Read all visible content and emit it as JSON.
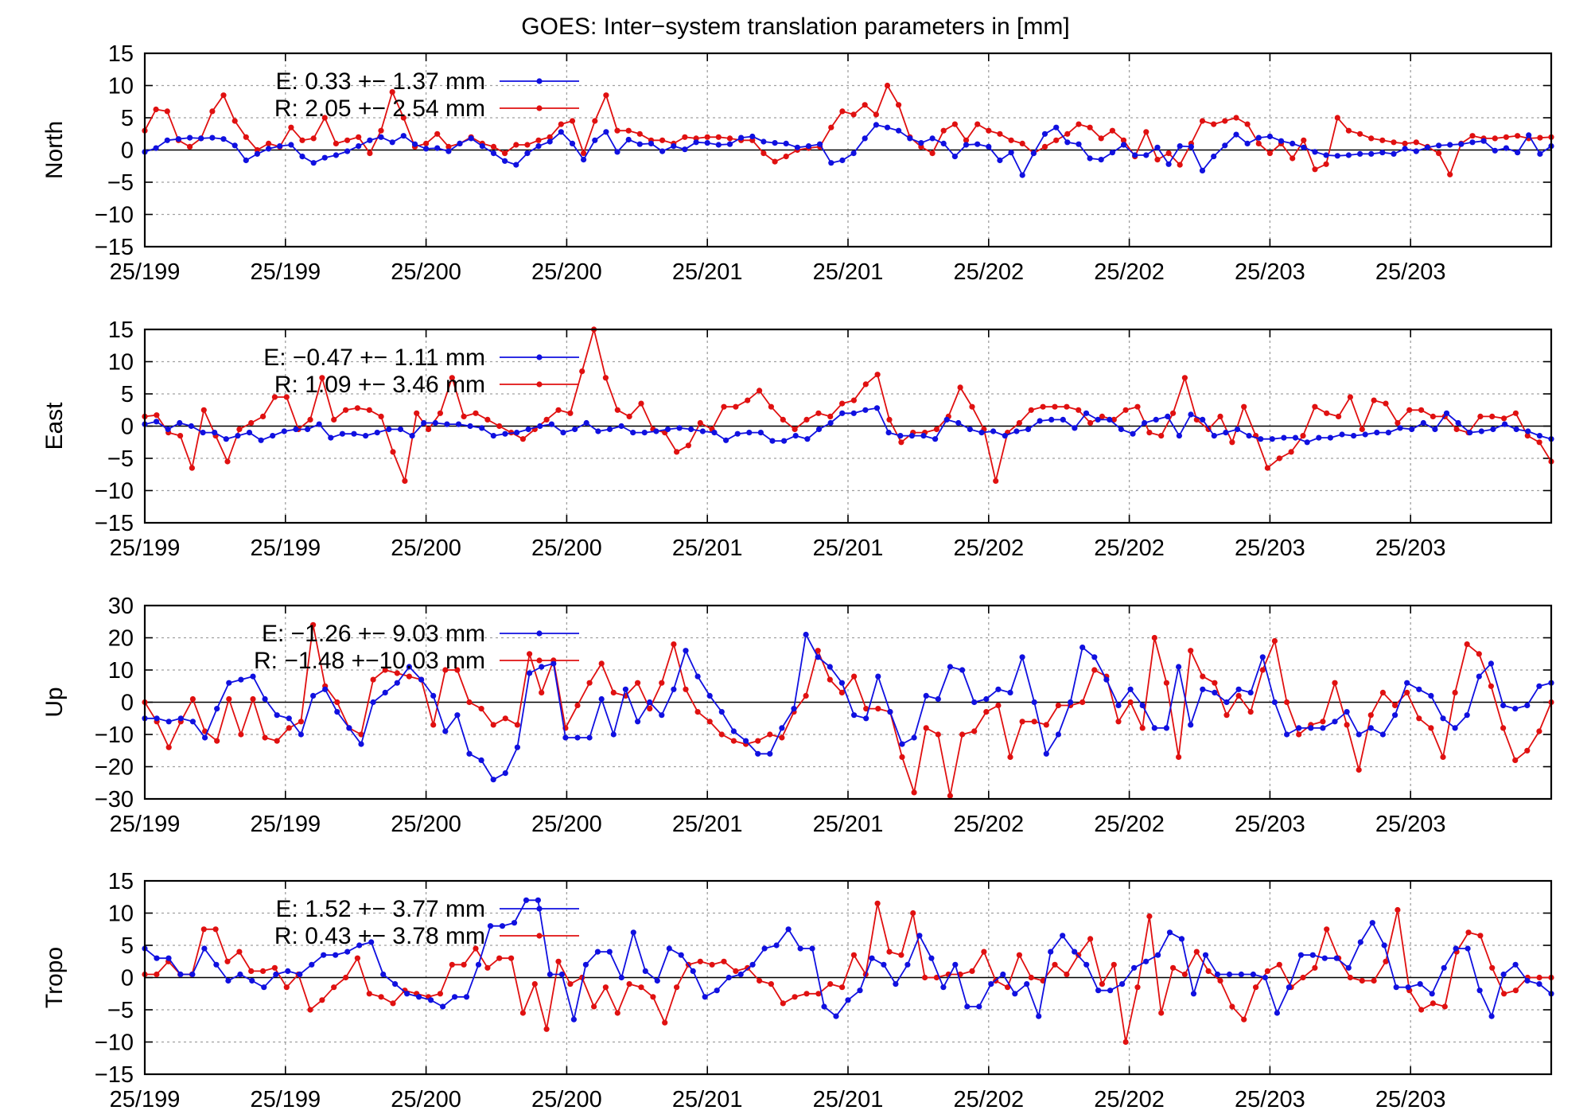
{
  "title": "GOES: Inter−system translation parameters in [mm]",
  "colors": {
    "E": "#1010e0",
    "R": "#e01010",
    "axis": "#000000",
    "grid": "#a0a0a0"
  },
  "chart_data": [
    {
      "type": "line",
      "ylabel": "North",
      "ylim": [
        -15,
        15
      ],
      "yticks": [
        15,
        10,
        5,
        0,
        -5,
        -10,
        -15
      ],
      "xtick_labels": [
        "25/199",
        "25/199",
        "25/200",
        "25/200",
        "25/201",
        "25/201",
        "25/202",
        "25/202",
        "25/203",
        "25/203"
      ],
      "grid": true,
      "legend_position": "top-left",
      "series": [
        {
          "name": "E",
          "legend_label": "E:   0.33 +− 1.37 mm",
          "color": "#1010e0",
          "values": [
            -0.3,
            0.3,
            1.5,
            1.7,
            1.9,
            1.8,
            1.9,
            1.7,
            0.7,
            -1.6,
            -0.6,
            0.2,
            0.6,
            0.8,
            -1.0,
            -2.0,
            -1.2,
            -0.8,
            -0.2,
            0.6,
            1.5,
            2.0,
            1.2,
            2.2,
            0.9,
            0.2,
            0.3,
            -0.2,
            1.0,
            1.8,
            0.6,
            -0.5,
            -1.7,
            -2.3,
            -0.5,
            0.6,
            1.3,
            2.8,
            1.0,
            -1.5,
            1.5,
            2.8,
            -0.3,
            1.6,
            0.9,
            1.0,
            -0.2,
            0.6,
            0.1,
            1.2,
            1.1,
            0.8,
            0.9,
            1.9,
            2.1,
            1.3,
            1.1,
            1.0,
            0.4,
            0.6,
            0.9,
            -2.0,
            -1.6,
            -0.5,
            1.8,
            3.9,
            3.5,
            3.0,
            1.8,
            1.1,
            1.8,
            1.0,
            -1.0,
            0.8,
            0.9,
            0.5,
            -1.6,
            -0.4,
            -3.9,
            -0.5,
            2.5,
            3.5,
            1.2,
            0.9,
            -1.3,
            -1.5,
            -0.4,
            0.8,
            -0.8,
            -0.8,
            0.4,
            -2.2,
            0.6,
            0.5,
            -3.2,
            -1.0,
            0.7,
            2.4,
            1.0,
            1.9,
            2.1,
            1.4,
            1.0,
            0.4,
            -0.3,
            -0.8,
            -0.9,
            -0.8,
            -0.6,
            -0.6,
            -0.4,
            -0.6,
            0.2,
            -0.2,
            0.4,
            0.7,
            0.8,
            0.9,
            1.2,
            1.4,
            -0.1,
            0.3,
            -0.4,
            2.3,
            -0.6,
            0.6
          ]
        },
        {
          "name": "R",
          "legend_label": "R:   2.05 +− 2.54 mm",
          "color": "#e01010",
          "values": [
            3.0,
            6.3,
            6.0,
            1.5,
            0.5,
            1.8,
            6.0,
            8.5,
            4.5,
            2.0,
            0.0,
            1.0,
            0.5,
            3.5,
            1.5,
            1.8,
            5.0,
            1.0,
            1.5,
            2.0,
            -0.5,
            3.0,
            9.0,
            5.0,
            0.5,
            1.0,
            2.5,
            0.5,
            1.0,
            2.0,
            1.0,
            0.5,
            -0.5,
            0.8,
            0.8,
            1.5,
            2.0,
            4.0,
            4.5,
            -0.5,
            4.5,
            8.5,
            3.0,
            3.0,
            2.5,
            1.5,
            1.5,
            1.0,
            2.0,
            1.8,
            2.0,
            2.0,
            1.8,
            1.5,
            1.5,
            -0.5,
            -1.8,
            -1.0,
            0.0,
            0.3,
            0.5,
            3.5,
            6.0,
            5.5,
            7.0,
            5.5,
            10.0,
            7.0,
            2.0,
            0.5,
            -0.5,
            3.0,
            4.0,
            1.5,
            4.0,
            3.0,
            2.5,
            1.5,
            1.0,
            -0.5,
            0.5,
            1.5,
            2.5,
            4.0,
            3.5,
            1.8,
            3.0,
            1.5,
            -1.0,
            2.8,
            -1.5,
            -0.5,
            -2.3,
            1.0,
            4.5,
            4.0,
            4.5,
            5.0,
            4.0,
            1.0,
            -0.5,
            1.0,
            -1.3,
            1.5,
            -3.0,
            -2.2,
            5.0,
            3.0,
            2.5,
            1.8,
            1.5,
            1.2,
            1.0,
            1.2,
            0.5,
            -0.5,
            -3.8,
            1.0,
            2.2,
            1.8,
            1.8,
            2.0,
            2.2,
            1.8,
            1.9,
            2.0
          ]
        }
      ]
    },
    {
      "type": "line",
      "ylabel": "East",
      "ylim": [
        -15,
        15
      ],
      "yticks": [
        15,
        10,
        5,
        0,
        -5,
        -10,
        -15
      ],
      "xtick_labels": [
        "25/199",
        "25/199",
        "25/200",
        "25/200",
        "25/201",
        "25/201",
        "25/202",
        "25/202",
        "25/203",
        "25/203"
      ],
      "grid": true,
      "legend_position": "top-left",
      "series": [
        {
          "name": "E",
          "legend_label": "E:  −0.47 +− 1.11 mm",
          "color": "#1010e0",
          "values": [
            0.3,
            0.7,
            -0.5,
            0.5,
            0.0,
            -1.0,
            -1.0,
            -2.0,
            -1.5,
            -1.0,
            -2.2,
            -1.5,
            -0.8,
            -0.5,
            -0.5,
            0.3,
            -1.8,
            -1.2,
            -1.2,
            -1.5,
            -1.0,
            -0.5,
            -0.5,
            -1.5,
            0.5,
            0.5,
            0.3,
            0.3,
            0.0,
            -0.3,
            -1.5,
            -1.2,
            -1.0,
            -0.5,
            0.0,
            0.3,
            -1.0,
            -0.5,
            0.5,
            -0.8,
            -0.5,
            0.0,
            -1.0,
            -1.0,
            -0.8,
            -0.5,
            -0.3,
            -0.5,
            -0.8,
            -1.0,
            -2.2,
            -1.2,
            -1.0,
            -1.0,
            -2.3,
            -2.3,
            -1.5,
            -2.0,
            -0.5,
            0.5,
            2.0,
            2.0,
            2.5,
            2.8,
            -1.0,
            -1.5,
            -1.5,
            -1.5,
            -2.0,
            1.0,
            0.5,
            -0.5,
            -1.0,
            -0.8,
            -1.5,
            -0.8,
            -0.5,
            0.8,
            1.0,
            1.0,
            -0.3,
            2.0,
            1.0,
            1.0,
            -0.5,
            -1.2,
            0.5,
            1.0,
            1.5,
            -1.5,
            1.8,
            1.0,
            -1.5,
            -1.0,
            -0.5,
            -1.5,
            -2.0,
            -2.0,
            -1.8,
            -1.8,
            -2.5,
            -1.8,
            -1.8,
            -1.3,
            -1.5,
            -1.3,
            -1.0,
            -1.0,
            -0.3,
            -0.5,
            0.5,
            -0.5,
            2.0,
            0.5,
            -1.0,
            -0.8,
            -0.5,
            0.3,
            -0.5,
            -0.8,
            -1.5,
            -2.0
          ]
        },
        {
          "name": "R",
          "legend_label": "R:   1.09 +− 3.46 mm",
          "color": "#e01010",
          "values": [
            1.5,
            1.7,
            -1.0,
            -1.5,
            -6.5,
            2.5,
            -1.5,
            -5.5,
            -0.5,
            0.5,
            1.5,
            4.5,
            4.5,
            -0.5,
            1.0,
            7.5,
            1.0,
            2.5,
            2.8,
            2.5,
            1.5,
            -4.0,
            -8.5,
            2.0,
            -0.5,
            2.0,
            7.5,
            1.5,
            2.0,
            1.0,
            0.0,
            -1.0,
            -2.0,
            -0.5,
            1.0,
            2.5,
            2.0,
            8.5,
            15.0,
            7.5,
            2.5,
            1.5,
            3.5,
            -0.5,
            -1.0,
            -4.0,
            -3.0,
            0.5,
            -0.5,
            3.0,
            3.0,
            4.0,
            5.5,
            3.0,
            1.0,
            -0.5,
            1.0,
            2.0,
            1.5,
            3.5,
            4.0,
            6.5,
            8.0,
            1.0,
            -2.5,
            -1.0,
            -1.0,
            -0.5,
            1.5,
            6.0,
            3.0,
            -0.5,
            -8.5,
            -1.0,
            0.5,
            2.5,
            3.0,
            3.0,
            3.0,
            2.5,
            0.5,
            1.5,
            1.0,
            2.5,
            3.0,
            -1.0,
            -1.5,
            2.0,
            7.5,
            1.0,
            -0.5,
            1.5,
            -2.5,
            3.0,
            -1.5,
            -6.5,
            -5.0,
            -4.0,
            -1.5,
            3.0,
            2.0,
            1.5,
            4.5,
            -0.5,
            4.0,
            3.5,
            0.5,
            2.5,
            2.5,
            1.5,
            1.5,
            -0.5,
            -1.0,
            1.5,
            1.5,
            1.2,
            2.0,
            -1.5,
            -2.5,
            -5.5
          ]
        }
      ]
    },
    {
      "type": "line",
      "ylabel": "Up",
      "ylim": [
        -30,
        30
      ],
      "yticks": [
        30,
        20,
        10,
        0,
        -10,
        -20,
        -30
      ],
      "xtick_labels": [
        "25/199",
        "25/199",
        "25/200",
        "25/200",
        "25/201",
        "25/201",
        "25/202",
        "25/202",
        "25/203",
        "25/203"
      ],
      "grid": true,
      "legend_position": "top-left",
      "series": [
        {
          "name": "E",
          "legend_label": "E:  −1.26 +− 9.03 mm",
          "color": "#1010e0",
          "values": [
            -5,
            -5,
            -6,
            -5,
            -6,
            -11,
            -2,
            6,
            7,
            8,
            1,
            -4,
            -5,
            -10,
            2,
            4,
            -3,
            -8,
            -13,
            0,
            3,
            6,
            11,
            7,
            2,
            -9,
            -4,
            -16,
            -18,
            -24,
            -22,
            -14,
            9,
            11,
            12,
            -11,
            -11,
            -11,
            1,
            -10,
            4,
            -6,
            0,
            -4,
            4,
            16,
            8,
            2,
            -3,
            -9,
            -12,
            -16,
            -16,
            -8,
            -2,
            21,
            14,
            11,
            6,
            -4,
            -5,
            8,
            -3,
            -13,
            -11,
            2,
            1,
            11,
            10,
            0,
            1,
            4,
            3,
            14,
            0,
            -16,
            -10,
            0,
            17,
            14,
            7,
            -1,
            4,
            -1,
            -8,
            -8,
            11,
            -7,
            4,
            3,
            0,
            4,
            3,
            14,
            0,
            -10,
            -8,
            -8,
            -8,
            -6,
            -3,
            -10,
            -8,
            -10,
            -4,
            6,
            4,
            2,
            -5,
            -8,
            -4,
            8,
            12,
            -1,
            -2,
            -1,
            5,
            6
          ]
        },
        {
          "name": "R",
          "legend_label": "R:  −1.48 +−10.03 mm",
          "color": "#e01010",
          "values": [
            0,
            -6,
            -14,
            -6,
            1,
            -9,
            -12,
            1,
            -10,
            1,
            -11,
            -12,
            -8,
            -6,
            24,
            5,
            0,
            -8,
            -10,
            7,
            10,
            9,
            8,
            7,
            -7,
            10,
            10,
            0,
            -2,
            -7,
            -5,
            -7,
            15,
            3,
            13,
            -8,
            -1,
            6,
            12,
            3,
            2,
            6,
            -2,
            6,
            18,
            4,
            -3,
            -6,
            -10,
            -12,
            -13,
            -12,
            -10,
            -11,
            -3,
            2,
            16,
            7,
            3,
            8,
            -2,
            -2,
            -3,
            -17,
            -28,
            -8,
            -10,
            -29,
            -10,
            -9,
            -3,
            -1,
            -17,
            -6,
            -6,
            -7,
            -1,
            -1,
            0,
            10,
            8,
            -6,
            0,
            -8,
            20,
            6,
            -17,
            16,
            8,
            6,
            -4,
            2,
            -3,
            10,
            19,
            0,
            -10,
            -7,
            -6,
            6,
            -7,
            -21,
            -4,
            3,
            -1,
            3,
            -5,
            -8,
            -17,
            3,
            18,
            15,
            5,
            -8,
            -18,
            -15,
            -9,
            0
          ]
        }
      ]
    },
    {
      "type": "line",
      "ylabel": "Tropo",
      "ylim": [
        -15,
        15
      ],
      "yticks": [
        15,
        10,
        5,
        0,
        -5,
        -10,
        -15
      ],
      "xtick_labels": [
        "25/199",
        "25/199",
        "25/200",
        "25/200",
        "25/201",
        "25/201",
        "25/202",
        "25/202",
        "25/203",
        "25/203"
      ],
      "grid": true,
      "legend_position": "top-left",
      "series": [
        {
          "name": "E",
          "legend_label": "E:   1.52 +− 3.77 mm",
          "color": "#1010e0",
          "values": [
            4.5,
            3.0,
            3.0,
            0.5,
            0.5,
            4.5,
            2.0,
            -0.5,
            0.5,
            -0.5,
            -1.5,
            0.5,
            1.0,
            0.5,
            2.0,
            3.5,
            3.5,
            4.0,
            5.0,
            5.5,
            0.5,
            -1.0,
            -2.5,
            -3.0,
            -3.5,
            -4.5,
            -3.0,
            -3.0,
            2.0,
            8.0,
            8.0,
            8.5,
            12.0,
            12.0,
            0.5,
            0.5,
            -6.5,
            2.0,
            4.0,
            4.0,
            0.0,
            7.0,
            1.0,
            -0.5,
            4.5,
            3.5,
            1.0,
            -3.0,
            -2.0,
            0.0,
            0.5,
            2.0,
            4.5,
            5.0,
            7.5,
            4.5,
            4.5,
            -4.5,
            -6.0,
            -3.5,
            -2.0,
            3.0,
            2.0,
            -1.0,
            2.0,
            6.5,
            3.0,
            -1.5,
            2.0,
            -4.5,
            -4.5,
            -1.0,
            0.5,
            -2.5,
            -1.0,
            -6.0,
            4.0,
            6.5,
            4.0,
            2.0,
            -2.0,
            -2.0,
            -1.0,
            1.5,
            2.5,
            3.5,
            7.0,
            6.0,
            -2.5,
            3.5,
            0.5,
            0.5,
            0.5,
            0.5,
            0.0,
            -5.5,
            -1.5,
            3.5,
            3.5,
            3.0,
            3.0,
            1.5,
            5.5,
            8.5,
            5.0,
            -1.5,
            -1.5,
            -1.0,
            -2.5,
            1.5,
            4.5,
            4.5,
            -2.0,
            -6.0,
            0.5,
            2.0,
            -0.5,
            -1.0,
            -2.5
          ]
        },
        {
          "name": "R",
          "legend_label": "R:   0.43 +− 3.78 mm",
          "color": "#e01010",
          "values": [
            0.5,
            0.5,
            2.5,
            0.5,
            0.5,
            7.5,
            7.5,
            2.5,
            4.0,
            1.0,
            1.0,
            1.5,
            -1.5,
            0.5,
            -5.0,
            -3.5,
            -1.5,
            0.0,
            3.0,
            -2.5,
            -3.0,
            -4.0,
            -2.0,
            -2.5,
            -3.0,
            -2.5,
            2.0,
            2.0,
            4.5,
            1.5,
            3.0,
            3.0,
            -5.5,
            -1.0,
            -8.0,
            2.5,
            -1.0,
            0.0,
            -4.5,
            -1.5,
            -5.5,
            -1.0,
            -1.5,
            -3.0,
            -7.0,
            -1.5,
            2.0,
            2.5,
            2.0,
            2.5,
            1.0,
            1.5,
            -0.5,
            -1.0,
            -4.0,
            -3.0,
            -2.5,
            -2.5,
            -1.0,
            -1.5,
            3.5,
            0.5,
            11.5,
            4.0,
            3.5,
            10.0,
            0.0,
            0.0,
            0.5,
            0.5,
            1.0,
            4.0,
            -0.5,
            -1.5,
            3.5,
            0.0,
            -0.5,
            2.0,
            0.5,
            3.5,
            6.0,
            -1.0,
            2.0,
            -10.0,
            -1.5,
            9.5,
            -5.5,
            1.5,
            0.5,
            4.0,
            1.0,
            -0.5,
            -4.5,
            -6.5,
            -1.5,
            1.0,
            2.0,
            -1.5,
            0.0,
            1.5,
            7.5,
            3.0,
            0.0,
            -0.5,
            -0.5,
            2.5,
            10.5,
            -2.0,
            -5.0,
            -4.0,
            -4.5,
            4.0,
            7.0,
            6.5,
            1.5,
            -2.5,
            -2.0,
            0.0,
            0.0,
            0.0
          ]
        }
      ]
    }
  ]
}
